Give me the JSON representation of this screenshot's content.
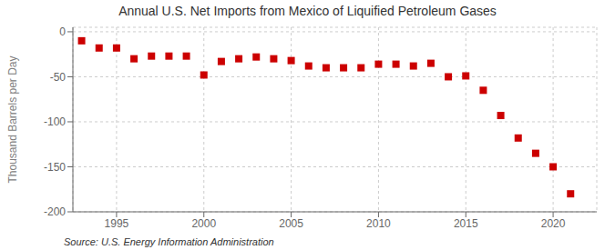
{
  "chart_data": {
    "type": "scatter",
    "title": "Annual U.S. Net Imports from Mexico of Liquified Petroleum Gases",
    "ylabel": "Thousand Barrels per Day",
    "annotations": [
      "Source: U.S. Energy Information Administration"
    ],
    "x": [
      1993,
      1994,
      1995,
      1996,
      1997,
      1998,
      1999,
      2000,
      2001,
      2002,
      2003,
      2004,
      2005,
      2006,
      2007,
      2008,
      2009,
      2010,
      2011,
      2012,
      2013,
      2014,
      2015,
      2016,
      2017,
      2018,
      2019,
      2020,
      2021
    ],
    "values": [
      -10,
      -18,
      -18,
      -30,
      -27,
      -27,
      -27,
      -48,
      -33,
      -30,
      -28,
      -30,
      -32,
      -38,
      -40,
      -40,
      -40,
      -36,
      -36,
      -38,
      -35,
      -50,
      -49,
      -65,
      -93,
      -118,
      -135,
      -150,
      -180
    ],
    "xlim": [
      1992.5,
      2022.5
    ],
    "xticks": [
      1995,
      2000,
      2005,
      2010,
      2015,
      2020
    ],
    "ylim": [
      -200,
      5
    ],
    "yticks": [
      0,
      -50,
      -100,
      -150,
      -200
    ],
    "color": "#cc0000",
    "marker": "square",
    "grid": true
  }
}
